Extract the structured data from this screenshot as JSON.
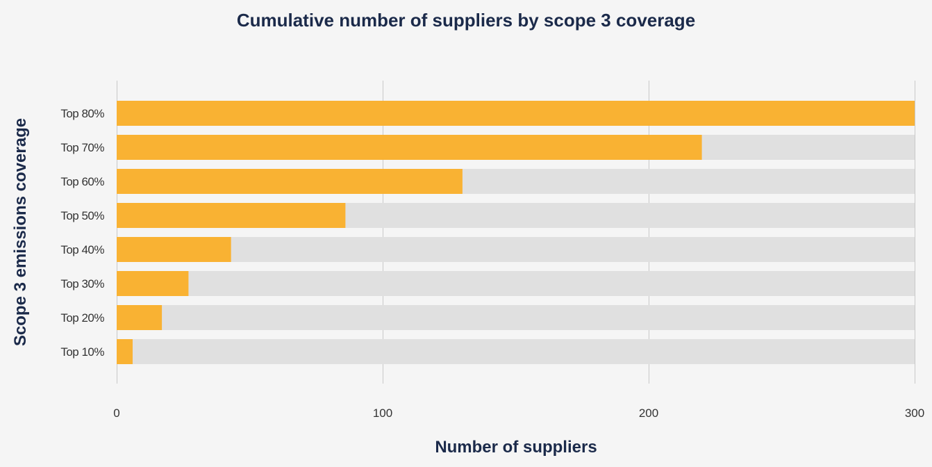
{
  "chart_data": {
    "type": "bar",
    "orientation": "horizontal",
    "title": "Cumulative number of suppliers by scope 3 coverage",
    "xlabel": "Number of suppliers",
    "ylabel": "Scope 3 emissions coverage",
    "categories": [
      "Top 80%",
      "Top 70%",
      "Top 60%",
      "Top 50%",
      "Top 40%",
      "Top 30%",
      "Top 20%",
      "Top 10%"
    ],
    "values": [
      300,
      220,
      130,
      86,
      43,
      27,
      17,
      6
    ],
    "xlim": [
      0,
      300
    ],
    "xticks": [
      0,
      100,
      200,
      300
    ],
    "xtick_labels": [
      "0",
      "100",
      "200",
      "300"
    ],
    "grid": true,
    "colors": {
      "bar": "#f9b233",
      "track": "#e0e0e0",
      "gridline": "#c8c8c8",
      "title": "#1b2a4a",
      "background": "#f5f5f5"
    }
  }
}
